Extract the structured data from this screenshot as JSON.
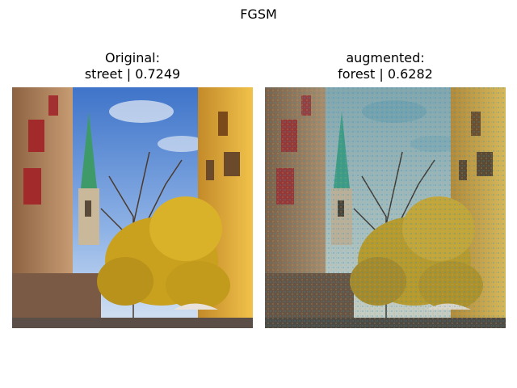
{
  "figure": {
    "title": "FGSM"
  },
  "panels": [
    {
      "title_line1": "Original:",
      "title_line2": "street | 0.7249",
      "image": "street scene with church spire and yellow autumn tree"
    },
    {
      "title_line1": "augmented:",
      "title_line2": "forest | 0.6282",
      "image": "same street scene with adversarial noise, washed out colors"
    }
  ],
  "colors": {
    "sky_top": "#4a7fd0",
    "sky_bottom": "#bcd3ee",
    "spire": "#3f9a6a",
    "tree": "#d1a820",
    "building_left": "#b78a62",
    "building_right": "#e0b23a",
    "aug_sky": "#8fb6b8"
  }
}
